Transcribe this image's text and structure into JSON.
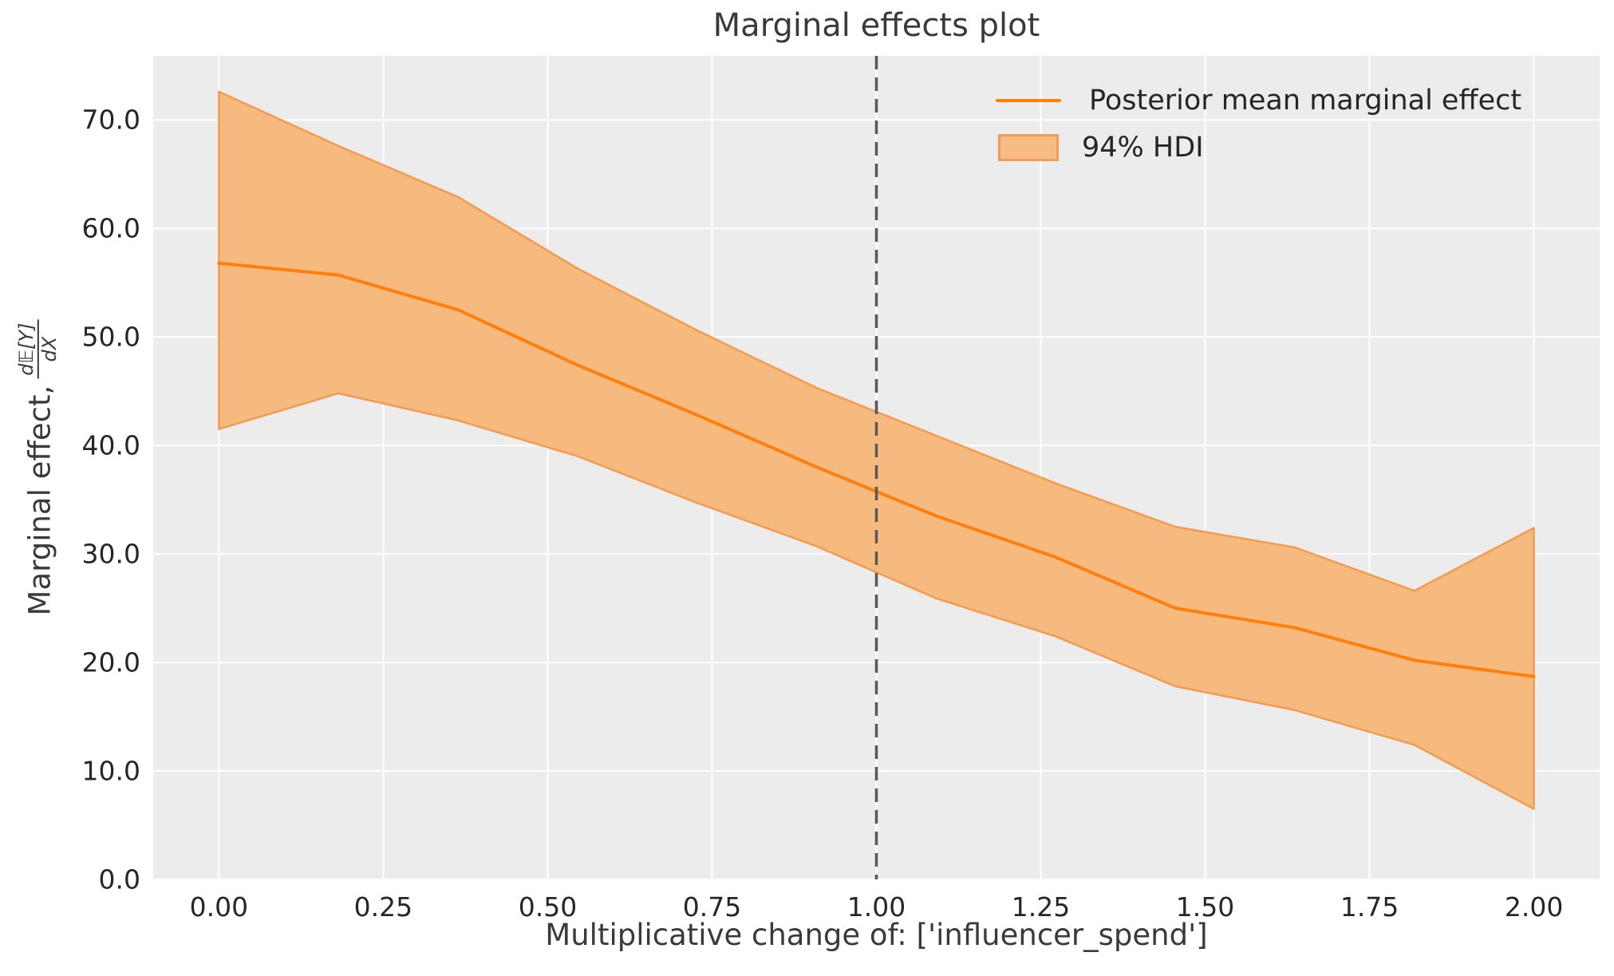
{
  "title": "Marginal effects plot",
  "labels": {
    "xlabel": "Multiplicative change of: ['influencer_spend']",
    "ylabel_prefix": "Marginal effect,",
    "ylabel_frac_num": "d𝔼[Y]",
    "ylabel_frac_den": "dX"
  },
  "legend": {
    "entries": [
      {
        "type": "line",
        "label": "Posterior mean marginal effect"
      },
      {
        "type": "patch",
        "label": "94% HDI"
      }
    ]
  },
  "colors": {
    "figure_bg": "#ffffff",
    "plot_bg": "#ececec",
    "grid": "#ffffff",
    "text": "#262626",
    "mean_line": "#ff7f0e",
    "band_fill": "#f6b97e",
    "band_edge": "#f29c51",
    "reference_line": "#595959"
  },
  "chart_data": {
    "type": "line",
    "title": "Marginal effects plot",
    "xlabel": "Multiplicative change of: ['influencer_spend']",
    "ylabel": "Marginal effect, d𝔼[Y]/dX",
    "x": [
      0.0,
      0.1818,
      0.3636,
      0.5455,
      0.7273,
      0.9091,
      1.0909,
      1.2727,
      1.4545,
      1.6364,
      1.8182,
      2.0
    ],
    "series": [
      {
        "name": "Posterior mean marginal effect",
        "role": "mean",
        "values": [
          56.8,
          55.7,
          52.5,
          47.4,
          42.8,
          38.0,
          33.5,
          29.7,
          25.0,
          23.2,
          20.2,
          18.7
        ]
      },
      {
        "name": "94% HDI upper",
        "role": "band_upper",
        "values": [
          72.6,
          67.6,
          62.9,
          56.3,
          50.6,
          45.3,
          40.9,
          36.5,
          32.5,
          30.6,
          26.6,
          32.4
        ]
      },
      {
        "name": "94% HDI lower",
        "role": "band_lower",
        "values": [
          41.5,
          44.8,
          42.3,
          39.0,
          34.7,
          30.7,
          25.9,
          22.4,
          17.8,
          15.6,
          12.4,
          6.5
        ]
      }
    ],
    "reference_line_x": 1.0,
    "x_ticks": [
      0.0,
      0.25,
      0.5,
      0.75,
      1.0,
      1.25,
      1.5,
      1.75,
      2.0
    ],
    "x_tick_labels": [
      "0.00",
      "0.25",
      "0.50",
      "0.75",
      "1.00",
      "1.25",
      "1.50",
      "1.75",
      "2.00"
    ],
    "y_ticks": [
      0,
      10,
      20,
      30,
      40,
      50,
      60,
      70
    ],
    "y_tick_labels": [
      "0.0",
      "10.0",
      "20.0",
      "30.0",
      "40.0",
      "50.0",
      "60.0",
      "70.0"
    ],
    "xlim": [
      -0.1,
      2.1
    ],
    "ylim": [
      0,
      75.9
    ],
    "grid": true,
    "legend_position": "upper right"
  }
}
